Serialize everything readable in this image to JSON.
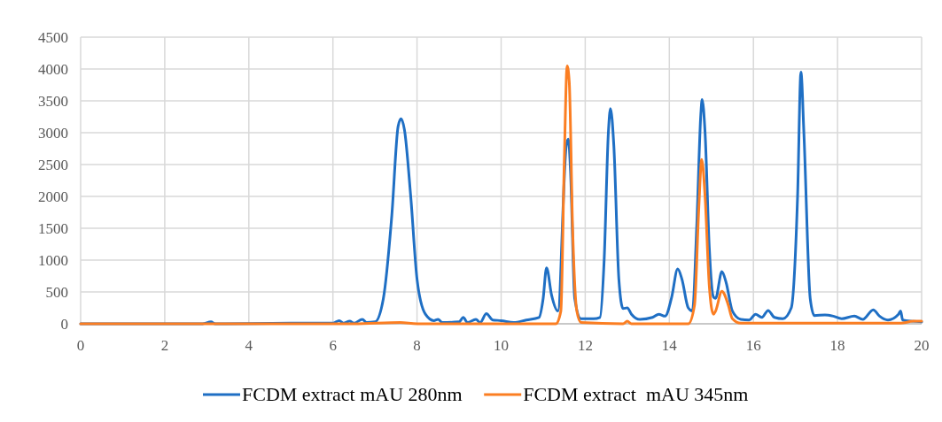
{
  "chart_data": {
    "type": "line",
    "xlim": [
      0,
      20
    ],
    "xticks": [
      0,
      2,
      4,
      6,
      8,
      10,
      12,
      14,
      16,
      18,
      20
    ],
    "ylim": [
      0,
      4500
    ],
    "yticks": [
      0,
      500,
      1000,
      1500,
      2000,
      2500,
      3000,
      3500,
      4000,
      4500
    ],
    "grid": true,
    "legend": "bottom",
    "line_style": "solid",
    "series": [
      {
        "name": "FCDM extract mAU 280nm",
        "color": "#1f6fc4",
        "x": [
          0,
          2.9,
          3.1,
          3.2,
          5,
          6,
          6.15,
          6.25,
          6.4,
          6.5,
          6.7,
          6.8,
          7.0,
          7.2,
          7.4,
          7.55,
          7.62,
          7.7,
          7.85,
          8.0,
          8.2,
          8.4,
          8.5,
          8.6,
          9.0,
          9.1,
          9.2,
          9.4,
          9.5,
          9.65,
          9.8,
          10,
          10.3,
          10.6,
          10.9,
          11.0,
          11.08,
          11.2,
          11.35,
          11.55,
          11.6,
          11.65,
          11.75,
          11.9,
          12.2,
          12.35,
          12.45,
          12.55,
          12.6,
          12.68,
          12.8,
          12.9,
          13.0,
          13.1,
          13.3,
          13.6,
          13.75,
          13.9,
          14.05,
          14.2,
          14.3,
          14.45,
          14.55,
          14.65,
          14.75,
          14.78,
          14.85,
          14.95,
          15.05,
          15.1,
          15.25,
          15.35,
          15.5,
          15.7,
          15.9,
          16.05,
          16.2,
          16.35,
          16.5,
          16.7,
          16.9,
          17.05,
          17.13,
          17.2,
          17.35,
          17.45,
          17.7,
          17.9,
          18.1,
          18.4,
          18.6,
          18.85,
          19.0,
          19.2,
          19.45,
          19.5,
          19.55,
          19.8,
          20
        ],
        "values": [
          0,
          0,
          30,
          0,
          10,
          10,
          50,
          10,
          40,
          10,
          70,
          20,
          30,
          400,
          1700,
          3100,
          3220,
          3050,
          2000,
          700,
          150,
          50,
          70,
          20,
          30,
          100,
          20,
          70,
          20,
          160,
          60,
          50,
          20,
          60,
          100,
          400,
          880,
          450,
          200,
          2800,
          2900,
          2400,
          400,
          80,
          80,
          100,
          1000,
          3000,
          3380,
          2800,
          700,
          240,
          250,
          150,
          70,
          100,
          150,
          120,
          400,
          860,
          700,
          250,
          200,
          1500,
          3300,
          3520,
          3000,
          1200,
          420,
          400,
          820,
          650,
          200,
          70,
          60,
          150,
          100,
          210,
          100,
          80,
          250,
          2000,
          3950,
          3000,
          400,
          130,
          140,
          120,
          80,
          120,
          70,
          220,
          120,
          60,
          150,
          200,
          60,
          40,
          30
        ]
      },
      {
        "name": "FCDM extract  mAU 345nm",
        "color": "#fb7e22",
        "x": [
          0,
          6.5,
          7.6,
          8,
          11.3,
          11.42,
          11.5,
          11.57,
          11.62,
          11.7,
          11.8,
          11.9,
          12.9,
          13.0,
          13.1,
          14.45,
          14.6,
          14.7,
          14.77,
          14.85,
          14.95,
          15.05,
          15.1,
          15.25,
          15.4,
          15.5,
          15.7,
          19.5,
          19.8,
          20
        ],
        "values": [
          0,
          0,
          20,
          0,
          0,
          200,
          2500,
          4050,
          3800,
          1500,
          200,
          20,
          0,
          40,
          0,
          0,
          300,
          1800,
          2580,
          2000,
          600,
          150,
          200,
          510,
          300,
          80,
          10,
          10,
          40,
          40
        ]
      }
    ]
  }
}
